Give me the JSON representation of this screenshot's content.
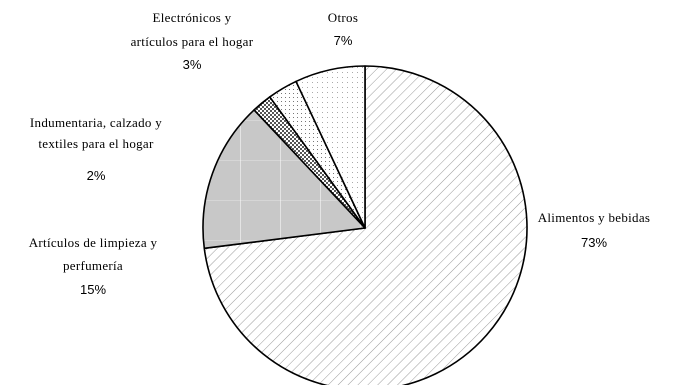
{
  "chart_data": {
    "type": "pie",
    "title": "",
    "slices": [
      {
        "name": "Alimentos y bebidas",
        "value": 73,
        "value_label": "73%",
        "fill": "hatch-diag"
      },
      {
        "name": "Artículos de limpieza y perfumería",
        "value": 15,
        "value_label": "15%",
        "fill": "gray-grid"
      },
      {
        "name": "Indumentaria, calzado y textiles para el hogar",
        "value": 2,
        "value_label": "2%",
        "fill": "checker"
      },
      {
        "name": "Electrónicos y artículos para el hogar",
        "value": 3,
        "value_label": "3%",
        "fill": "dots"
      },
      {
        "name": "Otros",
        "value": 7,
        "value_label": "7%",
        "fill": "light-dots"
      }
    ],
    "start_angle_deg": 0,
    "direction": "clockwise",
    "legend": "none",
    "colors": {
      "stroke": "#000000",
      "background": "#ffffff",
      "gray": "#c8c8c8"
    }
  },
  "labels": {
    "alimentos": {
      "lines": [
        "Alimentos y bebidas"
      ],
      "pct": "73%"
    },
    "limpieza": {
      "lines": [
        "Artículos de limpieza y",
        "perfumería"
      ],
      "pct": "15%"
    },
    "indumentaria": {
      "lines": [
        "Indumentaria, calzado y",
        "textiles para el hogar"
      ],
      "pct": "2%"
    },
    "electronicos": {
      "lines": [
        "Electrónicos y",
        "artículos para el hogar"
      ],
      "pct": "3%"
    },
    "otros": {
      "lines": [
        "Otros"
      ],
      "pct": "7%"
    }
  }
}
